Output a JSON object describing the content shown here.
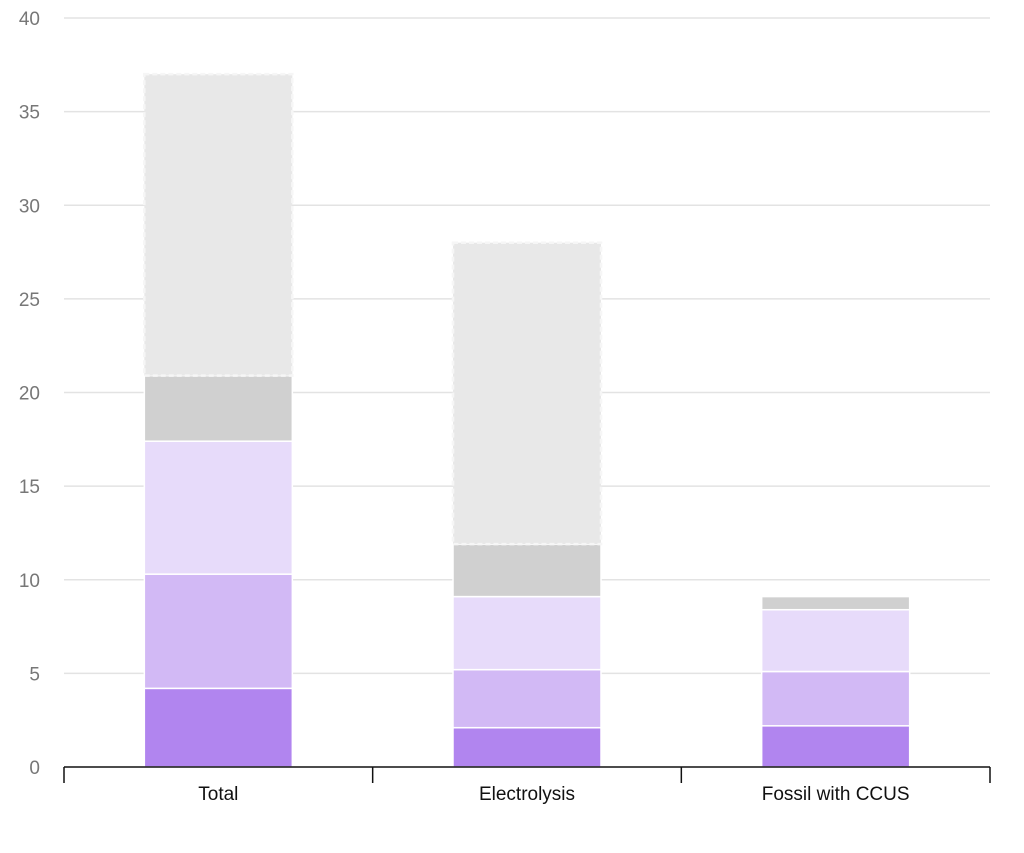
{
  "chart_data": {
    "type": "bar",
    "stacked": true,
    "categories": [
      "Total",
      "Electrolysis",
      "Fossil with CCUS"
    ],
    "ylim": [
      0,
      40
    ],
    "yticks": [
      0,
      5,
      10,
      15,
      20,
      25,
      30,
      35,
      40
    ],
    "grid": true,
    "title": "",
    "xlabel": "",
    "ylabel": "",
    "series": [
      {
        "values": [
          4.2,
          2.1,
          2.2
        ],
        "color": "#b185ef",
        "style": "solid"
      },
      {
        "values": [
          6.1,
          3.1,
          2.9
        ],
        "color": "#d2b9f5",
        "style": "solid"
      },
      {
        "values": [
          7.1,
          3.9,
          3.3
        ],
        "color": "#e7dbfa",
        "style": "solid"
      },
      {
        "values": [
          3.5,
          2.8,
          0.7
        ],
        "color": "#d0d0d0",
        "style": "solid"
      },
      {
        "values": [
          16.1,
          16.1,
          0
        ],
        "color": "#e8e8e8",
        "style": "dashed-outline"
      }
    ]
  }
}
